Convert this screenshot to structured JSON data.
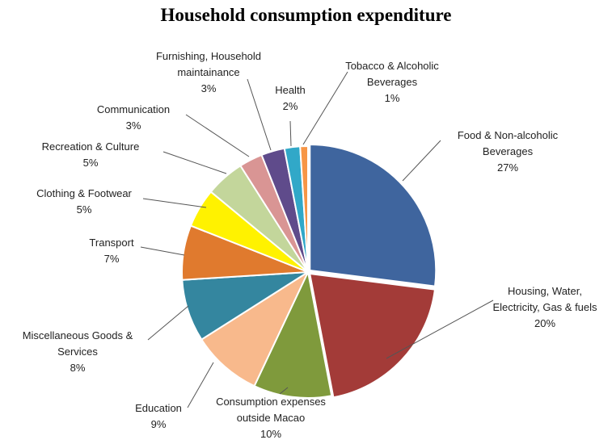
{
  "chart_data": {
    "type": "pie",
    "title": "Household consumption expenditure",
    "slices": [
      {
        "label_lines": [
          "Food & Non-alcoholic",
          "Beverages"
        ],
        "pct_label": "27%",
        "value": 27,
        "color": "#3F659E"
      },
      {
        "label_lines": [
          "Housing, Water,",
          "Electricity, Gas & fuels"
        ],
        "pct_label": "20%",
        "value": 20,
        "color": "#A33B38"
      },
      {
        "label_lines": [
          "Consumption expenses",
          "outside Macao"
        ],
        "pct_label": "10%",
        "value": 10,
        "color": "#7F9A3C"
      },
      {
        "label_lines": [
          "Education"
        ],
        "pct_label": "9%",
        "value": 9,
        "color": "#F8B98C"
      },
      {
        "label_lines": [
          "Miscellaneous Goods &",
          "Services"
        ],
        "pct_label": "8%",
        "value": 8,
        "color": "#34869F"
      },
      {
        "label_lines": [
          "Transport"
        ],
        "pct_label": "7%",
        "value": 7,
        "color": "#E07A2E"
      },
      {
        "label_lines": [
          "Clothing & Footwear"
        ],
        "pct_label": "5%",
        "value": 5,
        "color": "#FFF200"
      },
      {
        "label_lines": [
          "Recreation & Culture"
        ],
        "pct_label": "5%",
        "value": 5,
        "color": "#C3D69B"
      },
      {
        "label_lines": [
          "Communication"
        ],
        "pct_label": "3%",
        "value": 3,
        "color": "#D99594"
      },
      {
        "label_lines": [
          "Furnishing, Household",
          "maintainance"
        ],
        "pct_label": "3%",
        "value": 3,
        "color": "#5F4B8B"
      },
      {
        "label_lines": [
          "Health"
        ],
        "pct_label": "2%",
        "value": 2,
        "color": "#31A8C8"
      },
      {
        "label_lines": [
          "Tobacco & Alcoholic",
          "Beverages"
        ],
        "pct_label": "1%",
        "value": 1,
        "color": "#F79646"
      }
    ]
  }
}
